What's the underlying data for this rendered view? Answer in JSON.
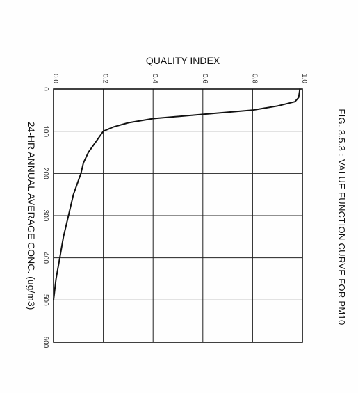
{
  "figure": {
    "title": "FIG. 3.5.3 : VALUE FUNCTION CURVE FOR PM10"
  },
  "chart_data": {
    "type": "line",
    "title": "FIG. 3.5.3 : VALUE FUNCTION CURVE FOR PM10",
    "xlabel": "QUALITY INDEX",
    "ylabel": "24-HR ANNUAL AVERAGE CONC. (ug/m3)",
    "orientation": "rotated-90-degrees-clockwise",
    "xlim": [
      0.0,
      1.0
    ],
    "ylim": [
      0,
      600
    ],
    "x_ticks": [
      "0.0",
      "0.2",
      "0.4",
      "0.6",
      "0.8",
      "1.0"
    ],
    "y_ticks": [
      "0",
      "100",
      "200",
      "300",
      "400",
      "500",
      "600"
    ],
    "grid": true,
    "series": [
      {
        "points": [
          {
            "concentration": 0,
            "quality_index": 0.99
          },
          {
            "concentration": 20,
            "quality_index": 0.985
          },
          {
            "concentration": 30,
            "quality_index": 0.97
          },
          {
            "concentration": 40,
            "quality_index": 0.9
          },
          {
            "concentration": 50,
            "quality_index": 0.8
          },
          {
            "concentration": 60,
            "quality_index": 0.6
          },
          {
            "concentration": 70,
            "quality_index": 0.4
          },
          {
            "concentration": 80,
            "quality_index": 0.3
          },
          {
            "concentration": 90,
            "quality_index": 0.24
          },
          {
            "concentration": 100,
            "quality_index": 0.2
          },
          {
            "concentration": 125,
            "quality_index": 0.17
          },
          {
            "concentration": 150,
            "quality_index": 0.14
          },
          {
            "concentration": 175,
            "quality_index": 0.12
          },
          {
            "concentration": 200,
            "quality_index": 0.11
          },
          {
            "concentration": 250,
            "quality_index": 0.08
          },
          {
            "concentration": 300,
            "quality_index": 0.06
          },
          {
            "concentration": 350,
            "quality_index": 0.04
          },
          {
            "concentration": 400,
            "quality_index": 0.025
          },
          {
            "concentration": 450,
            "quality_index": 0.01
          },
          {
            "concentration": 500,
            "quality_index": 0.0
          }
        ]
      }
    ]
  }
}
